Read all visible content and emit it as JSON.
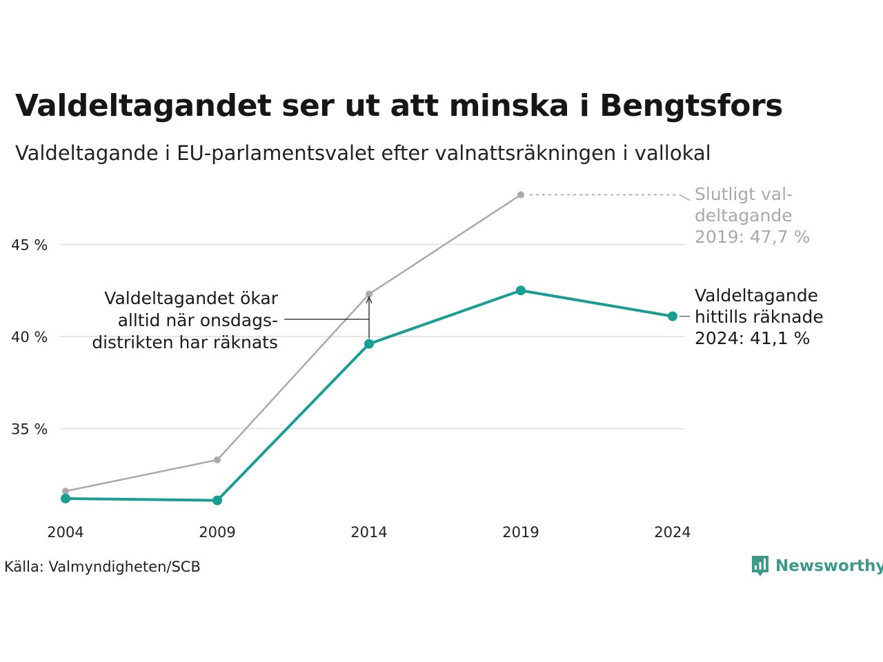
{
  "title": "Valdeltagandet ser ut att minska i Bengtsfors",
  "subtitle": "Valdeltagande i EU-parlamentsvalet efter valnattsräkningen i vallokal",
  "source": "Källa: Valmyndigheten/SCB",
  "brand": "Newsworthy",
  "colors": {
    "primary": "#1a9e94",
    "secondary": "#a9a9a9",
    "grid": "#e6e6e6",
    "brand": "#3d9a8b"
  },
  "chart_data": {
    "type": "line",
    "x": [
      "2004",
      "2009",
      "2014",
      "2019",
      "2024"
    ],
    "ylim": [
      30,
      48
    ],
    "yticks": [
      35,
      40,
      45
    ],
    "ytick_labels": [
      "35 %",
      "40 %",
      "45 %"
    ],
    "grid": true,
    "series": [
      {
        "key": "final",
        "color": "#a9a9a9",
        "values": [
          31.6,
          33.3,
          42.3,
          47.7,
          null
        ]
      },
      {
        "key": "election_night",
        "color": "#1a9e94",
        "values": [
          31.2,
          31.1,
          39.6,
          42.5,
          41.1
        ]
      }
    ],
    "annotations": {
      "final_label": [
        "Slutligt val-",
        "deltagande",
        "2019: 47,7 %"
      ],
      "current_label": [
        "Valdeltagande",
        "hittills räknade",
        "2024: 41,1 %"
      ],
      "wednesday_note": [
        "Valdeltagandet ökar",
        "alltid när onsdags-",
        "distrikten har räknats"
      ]
    }
  }
}
